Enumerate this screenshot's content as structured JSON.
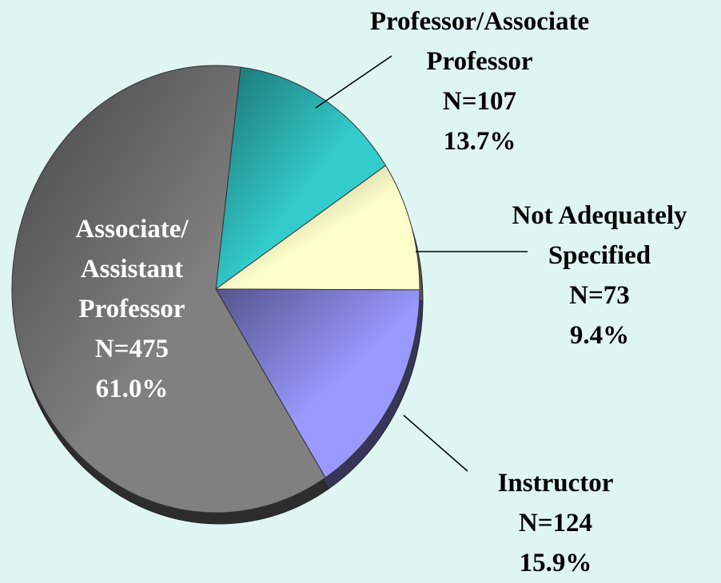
{
  "chart_data": {
    "type": "pie",
    "categories": [
      "Professor/Associate Professor",
      "Not Adequately Specified",
      "Instructor",
      "Associate/ Assistant Professor"
    ],
    "values": [
      107,
      73,
      124,
      475
    ],
    "value_labels": [
      "N=107",
      "N=73",
      "N=124",
      "N=475"
    ],
    "percent": [
      13.7,
      9.4,
      15.9,
      61.0
    ],
    "percent_labels": [
      "13.7%",
      "9.4%",
      "15.9%",
      "61.0%"
    ],
    "colors": [
      "#33cccc",
      "#ffffcc",
      "#9999ff",
      "#808080"
    ]
  }
}
